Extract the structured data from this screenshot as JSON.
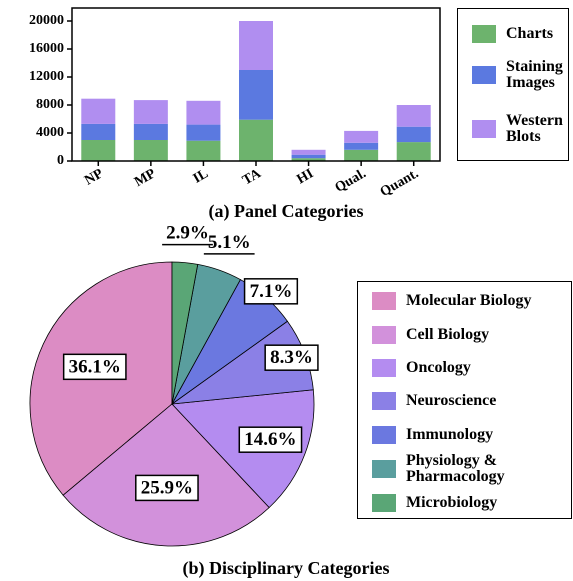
{
  "chart_data": [
    {
      "type": "bar",
      "stacked": true,
      "title": "(a) Panel Categories",
      "categories": [
        "NP",
        "MP",
        "IL",
        "TA",
        "HI",
        "Qual.",
        "Quant."
      ],
      "series": [
        {
          "name": "Charts",
          "color": "#6db36d",
          "values": [
            3000,
            3000,
            2900,
            5900,
            400,
            1600,
            2700
          ]
        },
        {
          "name": "Staining Images",
          "color": "#5b79e0",
          "values": [
            2300,
            2300,
            2300,
            7100,
            500,
            1000,
            2200
          ]
        },
        {
          "name": "Western Blots",
          "color": "#b08ef0",
          "values": [
            3600,
            3400,
            3400,
            7000,
            700,
            1700,
            3100
          ]
        }
      ],
      "ylim": [
        0,
        20000
      ],
      "yticks": [
        0,
        4000,
        8000,
        12000,
        16000,
        20000
      ]
    },
    {
      "type": "pie",
      "title": "(b) Disciplinary Categories",
      "categories": [
        "Molecular Biology",
        "Cell Biology",
        "Oncology",
        "Neuroscience",
        "Immunology",
        "Physiology & Pharmacology",
        "Microbiology"
      ],
      "values": [
        36.1,
        25.9,
        14.6,
        8.3,
        7.1,
        5.1,
        2.9
      ],
      "value_labels": [
        "36.1%",
        "25.9%",
        "14.6%",
        "8.3%",
        "7.1%",
        "5.1%",
        "2.9%"
      ],
      "colors": [
        "#dc8cc4",
        "#d291db",
        "#b48cf0",
        "#8b80e6",
        "#6b78e0",
        "#5a9e9e",
        "#5aa676"
      ]
    }
  ]
}
